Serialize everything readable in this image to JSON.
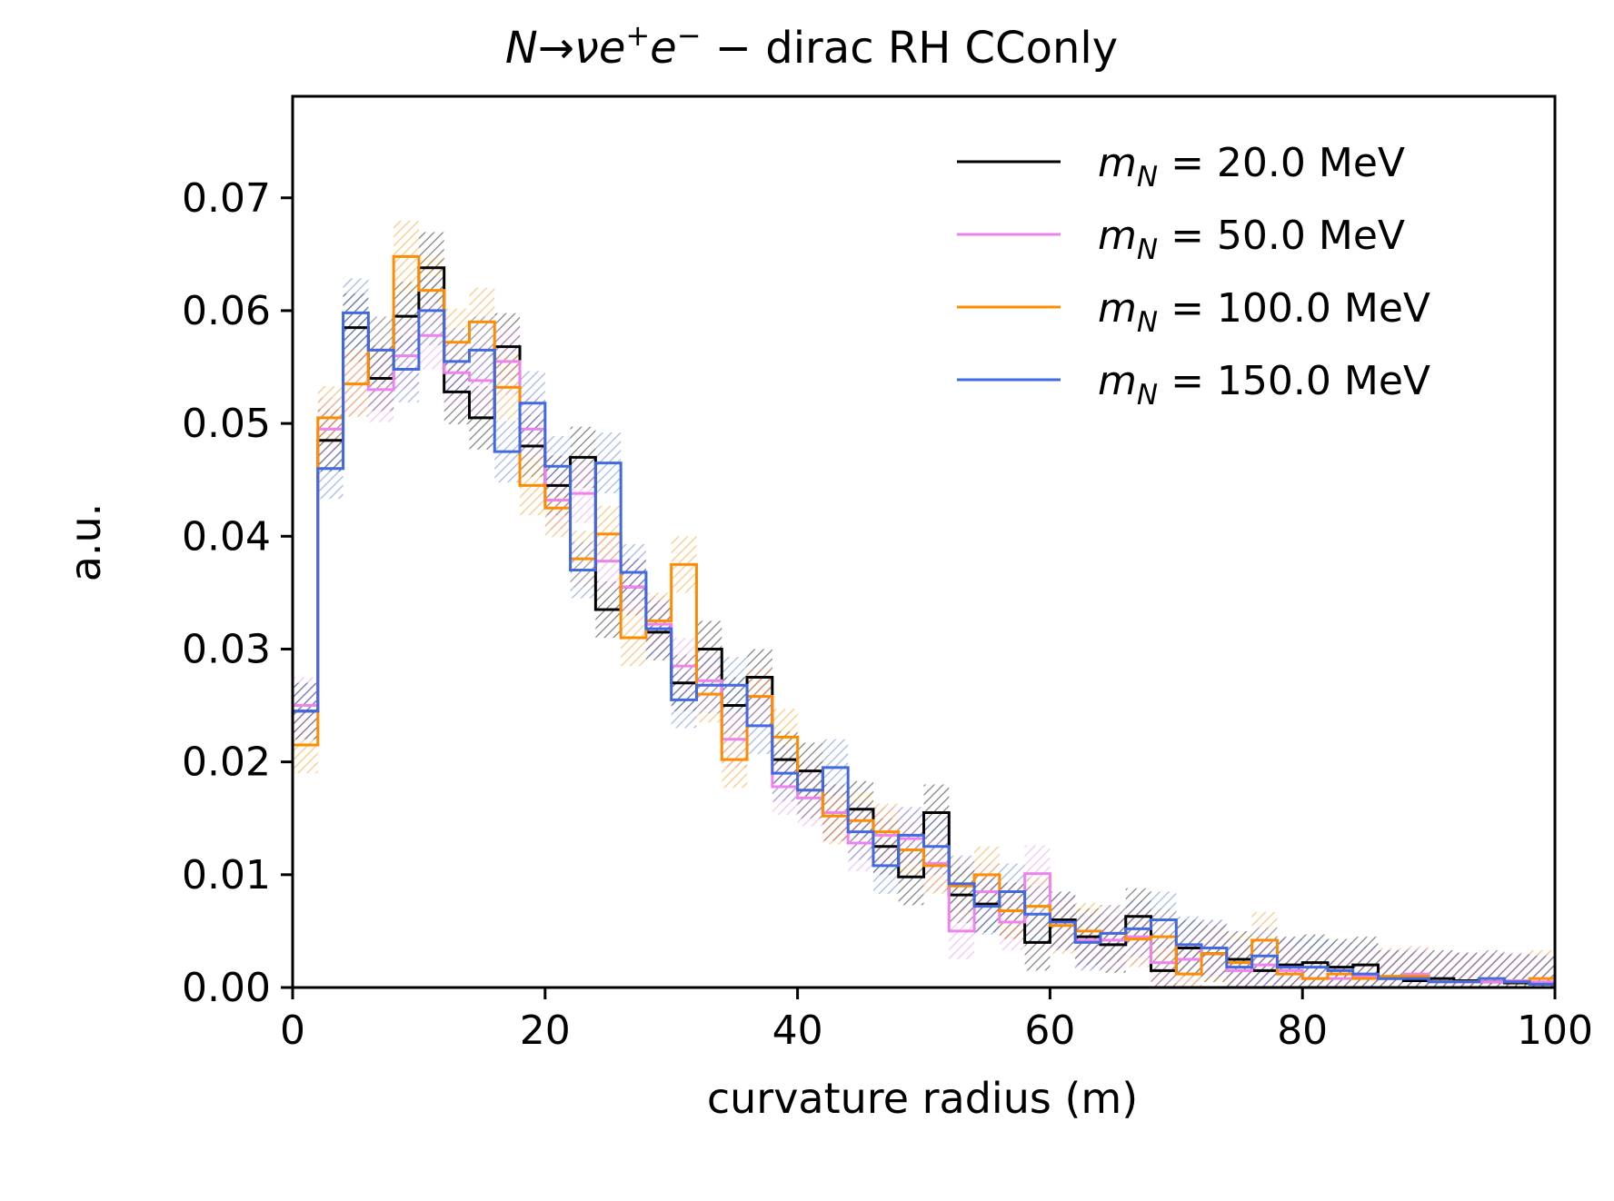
{
  "chart_data": {
    "type": "step-histogram",
    "title": {
      "main": "N→νe",
      "sup1": "+",
      "mid": "e",
      "sup2": "−",
      "rest": " − dirac RH CConly"
    },
    "xlabel": "curvature radius (m)",
    "ylabel": "a.u.",
    "xlim": [
      0,
      100
    ],
    "ylim": [
      0,
      0.079
    ],
    "xticks": [
      0,
      20,
      40,
      60,
      80,
      100
    ],
    "yticks": [
      0.0,
      0.01,
      0.02,
      0.03,
      0.04,
      0.05,
      0.06,
      0.07
    ],
    "bin_edges": [
      0,
      2,
      4,
      6,
      8,
      10,
      12,
      14,
      16,
      18,
      20,
      22,
      24,
      26,
      28,
      30,
      32,
      34,
      36,
      38,
      40,
      42,
      44,
      46,
      48,
      50,
      52,
      54,
      56,
      58,
      60,
      62,
      64,
      66,
      68,
      70,
      72,
      74,
      76,
      78,
      80,
      82,
      84,
      86,
      88,
      90,
      92,
      94,
      96,
      98,
      100
    ],
    "legend_position": "top-right",
    "series": [
      {
        "name": "m_N = 20.0 MeV",
        "legend_prefix": "m",
        "legend_sub": "N",
        "legend_value": " = 20.0 MeV",
        "color": "#000000",
        "values": [
          0.0245,
          0.0485,
          0.0585,
          0.054,
          0.0595,
          0.0638,
          0.0528,
          0.0505,
          0.0568,
          0.048,
          0.0445,
          0.047,
          0.0335,
          0.0355,
          0.0315,
          0.027,
          0.03,
          0.025,
          0.0275,
          0.0202,
          0.0192,
          0.0155,
          0.0158,
          0.0125,
          0.0098,
          0.0155,
          0.0082,
          0.0074,
          0.0068,
          0.004,
          0.006,
          0.0045,
          0.0038,
          0.0063,
          0.0015,
          0.0035,
          0.003,
          0.0025,
          0.0015,
          0.002,
          0.0022,
          0.0018,
          0.002,
          0.0008,
          0.0006,
          0.0008,
          0.0006,
          0.0005,
          0.0004,
          0.0003
        ]
      },
      {
        "name": "m_N = 50.0 MeV",
        "legend_prefix": "m",
        "legend_sub": "N",
        "legend_value": " = 50.0 MeV",
        "color": "#ee82ee",
        "values": [
          0.025,
          0.0495,
          0.0535,
          0.053,
          0.056,
          0.0578,
          0.0545,
          0.0538,
          0.0555,
          0.0495,
          0.0432,
          0.0438,
          0.0378,
          0.0355,
          0.0322,
          0.0285,
          0.0272,
          0.022,
          0.0258,
          0.0178,
          0.0168,
          0.0155,
          0.0128,
          0.0135,
          0.0132,
          0.011,
          0.005,
          0.0085,
          0.0058,
          0.0101,
          0.0058,
          0.0042,
          0.0042,
          0.0045,
          0.0022,
          0.0025,
          0.0035,
          0.0015,
          0.002,
          0.0015,
          0.0008,
          0.0008,
          0.001,
          0.0008,
          0.0012,
          0.0005,
          0.0005,
          0.0005,
          0.0006,
          0.0005
        ]
      },
      {
        "name": "m_N = 100.0 MeV",
        "legend_prefix": "m",
        "legend_sub": "N",
        "legend_value": " = 100.0 MeV",
        "color": "#ff8c00",
        "values": [
          0.0215,
          0.0505,
          0.0535,
          0.0565,
          0.0648,
          0.0618,
          0.0572,
          0.059,
          0.0532,
          0.0445,
          0.0425,
          0.038,
          0.0402,
          0.031,
          0.0325,
          0.0375,
          0.026,
          0.0202,
          0.0258,
          0.0222,
          0.0175,
          0.0152,
          0.0148,
          0.0138,
          0.0122,
          0.0108,
          0.009,
          0.01,
          0.0068,
          0.0072,
          0.0055,
          0.005,
          0.0048,
          0.0043,
          0.0045,
          0.0012,
          0.003,
          0.0022,
          0.0042,
          0.0012,
          0.0008,
          0.0012,
          0.0008,
          0.001,
          0.001,
          0.0005,
          0.0005,
          0.0008,
          0.0005,
          0.0008
        ]
      },
      {
        "name": "m_N = 150.0 MeV",
        "legend_prefix": "m",
        "legend_sub": "N",
        "legend_value": " = 150.0 MeV",
        "color": "#4169e1",
        "values": [
          0.0245,
          0.046,
          0.0598,
          0.0565,
          0.0548,
          0.06,
          0.0555,
          0.0565,
          0.0475,
          0.0518,
          0.0462,
          0.037,
          0.0465,
          0.0368,
          0.0318,
          0.0255,
          0.0268,
          0.0268,
          0.0232,
          0.019,
          0.0175,
          0.0195,
          0.0138,
          0.0108,
          0.0135,
          0.0125,
          0.0092,
          0.0072,
          0.0085,
          0.0065,
          0.0058,
          0.004,
          0.0048,
          0.0052,
          0.006,
          0.0038,
          0.0035,
          0.0018,
          0.0028,
          0.0018,
          0.0018,
          0.0015,
          0.0012,
          0.0008,
          0.0008,
          0.0005,
          0.0005,
          0.0008,
          0.0005,
          0.0003
        ]
      }
    ]
  }
}
